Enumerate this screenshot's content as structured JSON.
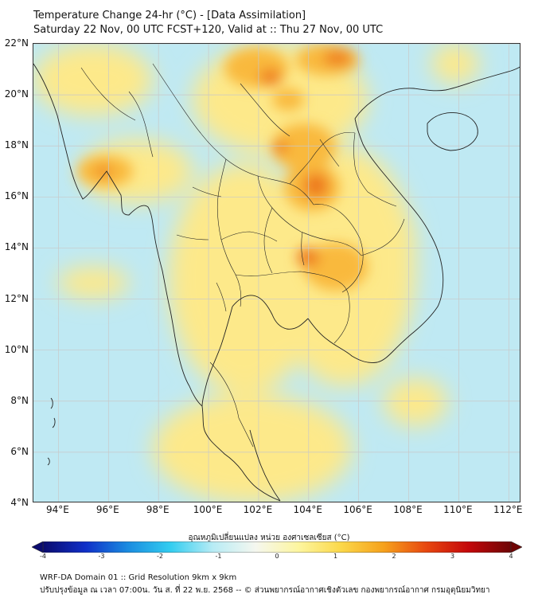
{
  "header": {
    "title_line1": "Temperature Change 24-hr (°C) - [Data Assimilation]",
    "title_line2": "Saturday 22 Nov, 00 UTC FCST+120, Valid at :: Thu 27 Nov, 00 UTC"
  },
  "map": {
    "lon_range": [
      93,
      112.5
    ],
    "lat_range": [
      4,
      22
    ],
    "lat_labels": [
      {
        "lat": 22,
        "text": "22°N"
      },
      {
        "lat": 20,
        "text": "20°N"
      },
      {
        "lat": 18,
        "text": "18°N"
      },
      {
        "lat": 16,
        "text": "16°N"
      },
      {
        "lat": 14,
        "text": "14°N"
      },
      {
        "lat": 12,
        "text": "12°N"
      },
      {
        "lat": 10,
        "text": "10°N"
      },
      {
        "lat": 8,
        "text": "8°N"
      },
      {
        "lat": 6,
        "text": "6°N"
      },
      {
        "lat": 4,
        "text": "4°N"
      }
    ],
    "lon_labels": [
      {
        "lon": 94,
        "text": "94°E"
      },
      {
        "lon": 96,
        "text": "96°E"
      },
      {
        "lon": 98,
        "text": "98°E"
      },
      {
        "lon": 100,
        "text": "100°E"
      },
      {
        "lon": 102,
        "text": "102°E"
      },
      {
        "lon": 104,
        "text": "104°E"
      },
      {
        "lon": 106,
        "text": "106°E"
      },
      {
        "lon": 108,
        "text": "108°E"
      },
      {
        "lon": 110,
        "text": "110°E"
      },
      {
        "lon": 112,
        "text": "112°E"
      }
    ],
    "field_colors": {
      "base_cold": "#bfe9f3",
      "warm": "#fde98a",
      "hot": "#f9b93c",
      "peak": "#ee7a1e"
    }
  },
  "colorbar": {
    "title": "อุณหภูมิเปลี่ยนแปลง หน่วย องศาเซลเซียส (°C)",
    "min": -4,
    "max": 4,
    "ticks": [
      {
        "value": -4,
        "text": "-4"
      },
      {
        "value": -3,
        "text": "-3"
      },
      {
        "value": -2,
        "text": "-2"
      },
      {
        "value": -1,
        "text": "-1"
      },
      {
        "value": 0,
        "text": "0"
      },
      {
        "value": 1,
        "text": "1"
      },
      {
        "value": 2,
        "text": "2"
      },
      {
        "value": 3,
        "text": "3"
      },
      {
        "value": 4,
        "text": "4"
      }
    ],
    "colors": [
      "#0b0b6e",
      "#1030c8",
      "#1a8ce0",
      "#33cdf0",
      "#b8ecf5",
      "#f5f7ef",
      "#fdf6a0",
      "#fbd84a",
      "#f6a21c",
      "#e8480f",
      "#c4070a",
      "#6e0505"
    ]
  },
  "footer": {
    "line1": "WRF-DA Domain 01 :: Grid Resolution 9km x 9km",
    "line2": "ปรับปรุงข้อมูล ณ เวลา 07:00น. วัน ส. ที่ 22 พ.ย. 2568 -- © ส่วนพยากรณ์อากาศเชิงตัวเลข กองพยากรณ์อากาศ กรมอุตุนิยมวิทยา"
  }
}
